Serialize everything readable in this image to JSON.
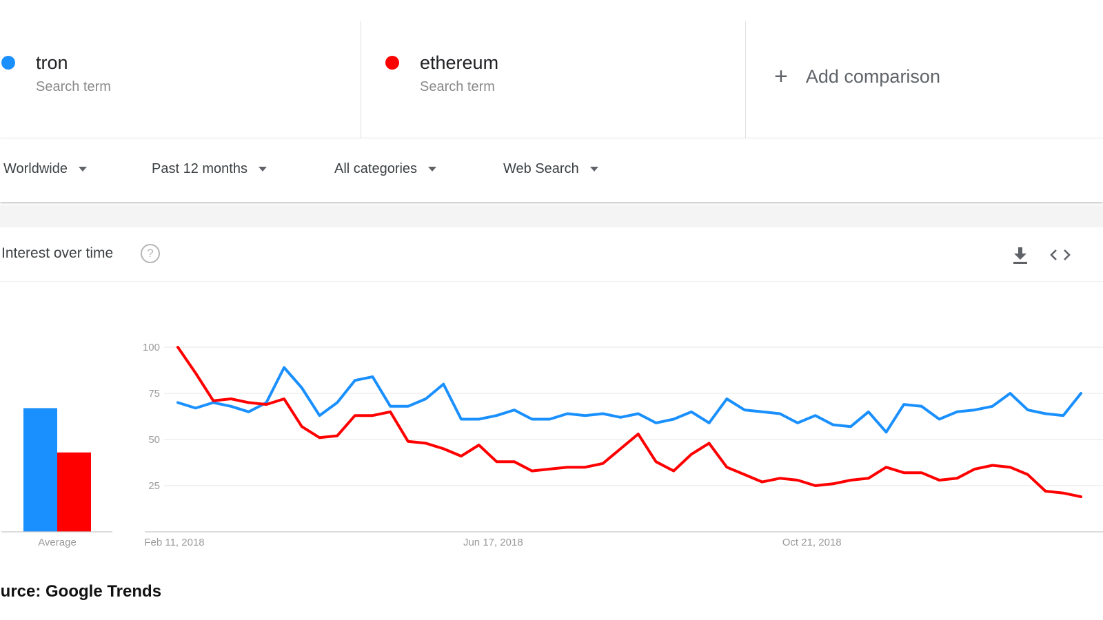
{
  "terms": [
    {
      "name": "tron",
      "sub": "Search term",
      "color": "#1a90ff"
    },
    {
      "name": "ethereum",
      "sub": "Search term",
      "color": "#ff0000"
    }
  ],
  "add_comparison": {
    "plus": "+",
    "label": "Add comparison"
  },
  "filters": [
    {
      "label": "Worldwide"
    },
    {
      "label": "Past 12 months"
    },
    {
      "label": "All categories"
    },
    {
      "label": "Web Search"
    }
  ],
  "card": {
    "title": "Interest over time",
    "help_icon": "help-circle-icon",
    "help_glyph": "?",
    "download_icon": "download-icon",
    "embed_icon": "embed-code-icon"
  },
  "source_text": "ource: Google Trends",
  "chart_data": {
    "type": "line",
    "y_ticks": [
      "100",
      "75",
      "50",
      "25"
    ],
    "ylim": [
      0,
      100
    ],
    "grid": true,
    "x_tick_labels": [
      {
        "label": "Feb 11, 2018",
        "index": 0
      },
      {
        "label": "Jun 17, 2018",
        "index": 18
      },
      {
        "label": "Oct 21, 2018",
        "index": 36
      }
    ],
    "series": [
      {
        "name": "tron",
        "color": "#1a90ff",
        "values": [
          70,
          67,
          70,
          68,
          65,
          70,
          89,
          78,
          63,
          70,
          82,
          84,
          68,
          68,
          72,
          80,
          61,
          61,
          63,
          66,
          61,
          61,
          64,
          63,
          64,
          62,
          64,
          59,
          61,
          65,
          59,
          72,
          66,
          65,
          64,
          59,
          63,
          58,
          57,
          65,
          54,
          69,
          68,
          61,
          65,
          66,
          68,
          75,
          66,
          64,
          63,
          75
        ]
      },
      {
        "name": "ethereum",
        "color": "#ff0000",
        "values": [
          100,
          86,
          71,
          72,
          70,
          69,
          72,
          57,
          51,
          52,
          63,
          63,
          65,
          49,
          48,
          45,
          41,
          47,
          38,
          38,
          33,
          34,
          35,
          35,
          37,
          45,
          53,
          38,
          33,
          42,
          48,
          35,
          31,
          27,
          29,
          28,
          25,
          26,
          28,
          29,
          35,
          32,
          32,
          28,
          29,
          34,
          36,
          35,
          31,
          22,
          21,
          19
        ]
      }
    ],
    "average": {
      "label": "Average",
      "bars": [
        {
          "name": "tron",
          "value": 67,
          "color": "#1a90ff"
        },
        {
          "name": "ethereum",
          "value": 43,
          "color": "#ff0000"
        }
      ]
    }
  }
}
